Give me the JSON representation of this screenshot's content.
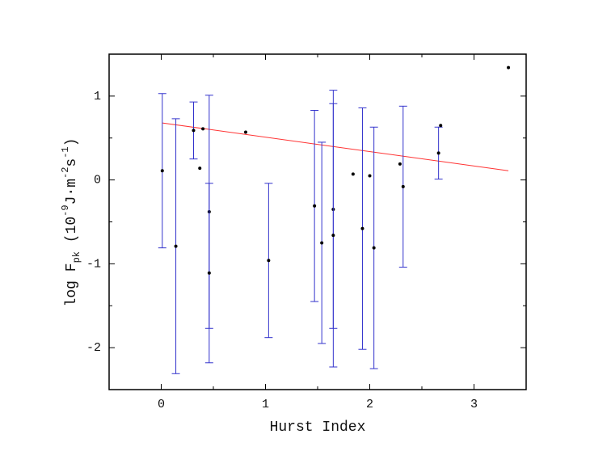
{
  "chart_data": {
    "type": "scatter",
    "xlabel": "Hurst Index",
    "ylabel": [
      "log F",
      "pk",
      " (10",
      "-9",
      "J·m",
      "-2",
      "s",
      "-1",
      ")"
    ],
    "ylabel_styles": [
      "normal",
      "sub",
      "normal",
      "sup",
      "normal",
      "sup",
      "normal",
      "sup",
      "normal"
    ],
    "xlim": [
      -0.5,
      3.5
    ],
    "ylim": [
      -2.5,
      1.5
    ],
    "xticks": [
      0,
      1,
      2,
      3
    ],
    "yticks": [
      -2,
      -1,
      0,
      1
    ],
    "x_minor_ticks": [
      0.5,
      1.5,
      2.5
    ],
    "y_minor_ticks": [
      -1.5,
      -0.5,
      0.5
    ],
    "point_color": "#000000",
    "error_color": "#3333cc",
    "x": [
      0.01,
      0.14,
      0.31,
      0.37,
      0.4,
      0.46,
      0.46,
      0.81,
      1.03,
      1.47,
      1.54,
      1.65,
      1.65,
      1.84,
      1.93,
      2.0,
      2.04,
      2.29,
      2.32,
      2.66,
      2.68,
      3.33
    ],
    "values": [
      0.11,
      -0.79,
      0.59,
      0.14,
      0.61,
      -0.38,
      -1.11,
      0.57,
      -0.96,
      -0.31,
      -0.75,
      -0.35,
      -0.66,
      0.07,
      -0.58,
      0.05,
      -0.81,
      0.19,
      -0.08,
      0.32,
      0.65,
      1.34
    ],
    "errors": [
      0.92,
      1.52,
      0.34,
      null,
      null,
      1.39,
      1.07,
      null,
      0.92,
      1.14,
      1.2,
      1.42,
      1.57,
      null,
      1.44,
      null,
      1.44,
      null,
      0.96,
      0.31,
      null,
      null
    ],
    "fit": {
      "color": "#ff3333",
      "x": [
        0.01,
        3.33
      ],
      "values": [
        0.68,
        0.11
      ]
    }
  }
}
